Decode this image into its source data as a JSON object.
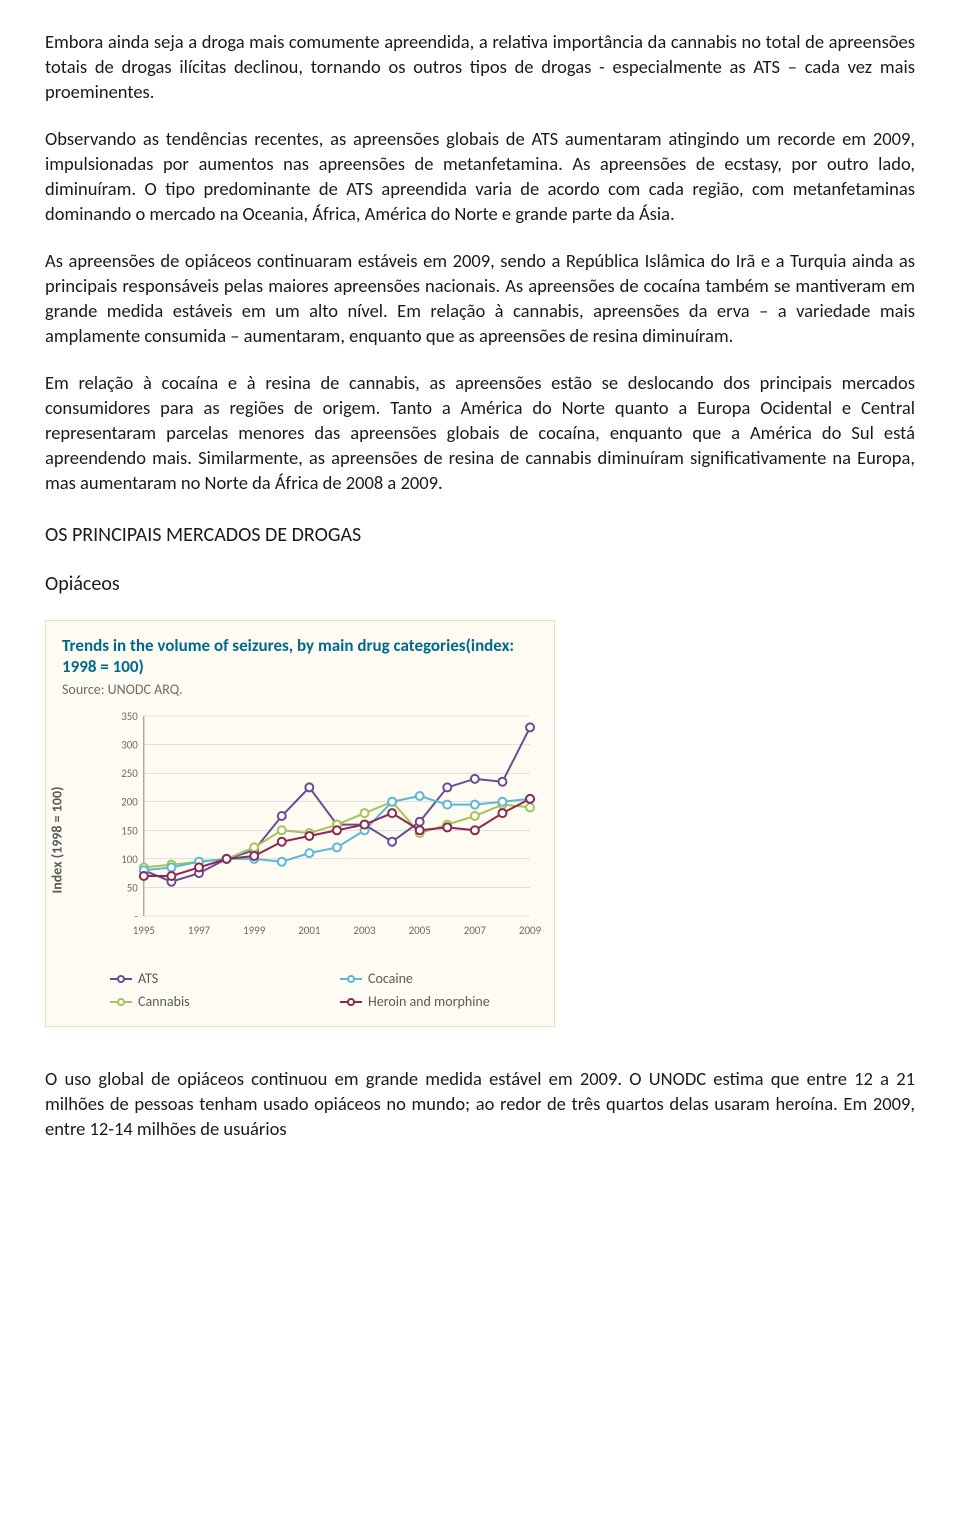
{
  "paragraphs": {
    "p1": "Embora ainda seja a droga mais comumente apreendida, a relativa importância da cannabis no total de apreensões totais de drogas ilícitas declinou, tornando os outros tipos de drogas - especialmente as ATS – cada vez mais proeminentes.",
    "p2": "Observando as tendências recentes, as apreensões globais de ATS aumentaram atingindo um recorde em 2009, impulsionadas por aumentos nas apreensões de metanfetamina. As apreensões de ecstasy, por outro lado, diminuíram. O tipo predominante de ATS apreendida varia de acordo com cada região, com metanfetaminas dominando o mercado na Oceania, África, América do Norte e grande parte da Ásia.",
    "p3": "As apreensões de opiáceos continuaram estáveis em 2009, sendo a República Islâmica do Irã e a Turquia ainda as principais responsáveis pelas maiores apreensões nacionais. As apreensões de cocaína também se mantiveram em grande medida estáveis em um alto nível. Em relação à cannabis, apreensões da erva – a variedade mais amplamente consumida – aumentaram, enquanto que as apreensões de resina diminuíram.",
    "p4": "Em relação à cocaína e à resina de cannabis, as apreensões estão se deslocando dos principais mercados consumidores para as regiões de origem. Tanto a América do Norte quanto a Europa Ocidental e Central representaram parcelas menores das apreensões globais de cocaína, enquanto que a América do Sul está apreendendo mais. Similarmente, as apreensões de resina de cannabis diminuíram significativamente na Europa, mas aumentaram no Norte da África de 2008 a 2009.",
    "p5": "O uso global de opiáceos continuou em grande medida estável em 2009. O UNODC estima que entre 12 a 21 milhões de pessoas tenham usado opiáceos no mundo; ao redor de três quartos delas usaram heroína. Em 2009, entre 12-14 milhões de usuários"
  },
  "headings": {
    "main": "OS PRINCIPAIS MERCADOS DE DROGAS",
    "sub": "Opiáceos"
  },
  "chart": {
    "type": "line",
    "title": "Trends in the volume of seizures, by main drug categories(index: 1998 = 100)",
    "source": "Source: UNODC ARQ.",
    "y_axis_label": "Index (1998 = 100)",
    "background_color": "#fdfbf2",
    "title_color": "#006a8e",
    "grid_color": "#cfcfcf",
    "tick_label_color": "#6b6b6b",
    "ylim": [
      0,
      350
    ],
    "ytick_step": 50,
    "yticks": [
      "-",
      "50",
      "100",
      "150",
      "200",
      "250",
      "300",
      "350"
    ],
    "xticks": [
      "1995",
      "1997",
      "1999",
      "2001",
      "2003",
      "2005",
      "2007",
      "2009"
    ],
    "years": [
      1995,
      1996,
      1997,
      1998,
      1999,
      2000,
      2001,
      2002,
      2003,
      2004,
      2005,
      2006,
      2007,
      2008,
      2009
    ],
    "series": [
      {
        "name": "ATS",
        "color": "#6a4c93",
        "values": [
          80,
          60,
          75,
          100,
          115,
          175,
          225,
          160,
          160,
          130,
          165,
          225,
          240,
          235,
          330
        ]
      },
      {
        "name": "Cannabis",
        "color": "#a8c256",
        "values": [
          85,
          90,
          95,
          100,
          120,
          150,
          145,
          160,
          180,
          200,
          145,
          160,
          175,
          195,
          190
        ]
      },
      {
        "name": "Cocaine",
        "color": "#5cb8d6",
        "values": [
          80,
          85,
          95,
          100,
          100,
          95,
          110,
          120,
          150,
          200,
          210,
          195,
          195,
          200,
          205
        ]
      },
      {
        "name": "Heroin and morphine",
        "color": "#8a2a52",
        "values": [
          70,
          70,
          85,
          100,
          105,
          130,
          140,
          150,
          160,
          180,
          150,
          155,
          150,
          180,
          205
        ]
      }
    ],
    "legend_layout": [
      [
        "ATS",
        "Cocaine"
      ],
      [
        "Cannabis",
        "Heroin and morphine"
      ]
    ],
    "line_width": 2,
    "marker_size": 4
  }
}
